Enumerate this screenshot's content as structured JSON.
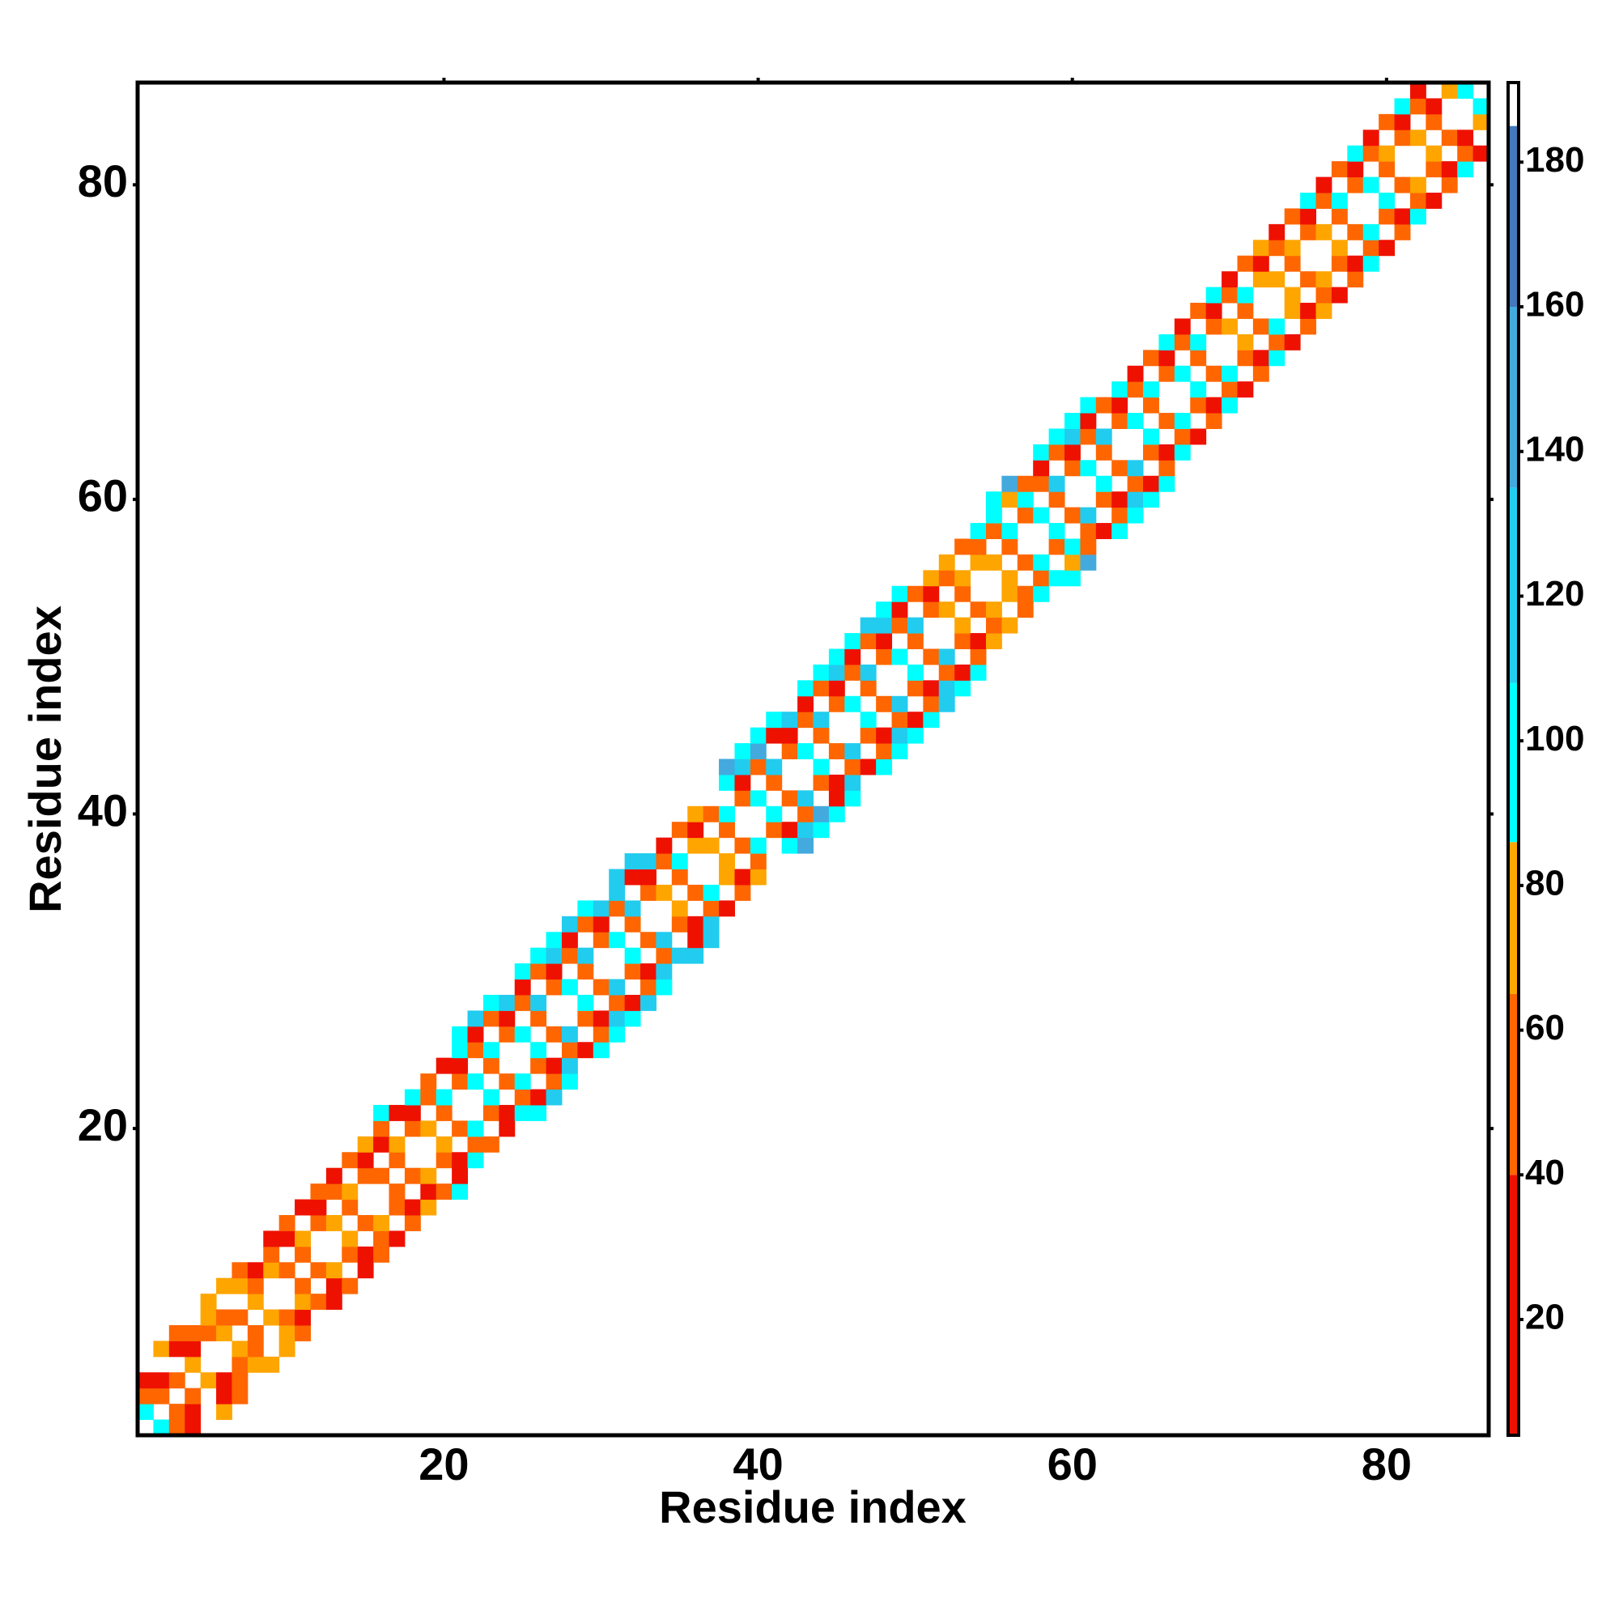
{
  "chart_data": {
    "type": "heatmap",
    "x_label": "Residue index",
    "y_label": "Residue index",
    "xlim": [
      0.5,
      86.5
    ],
    "ylim": [
      0.5,
      86.5
    ],
    "xticks": [
      20,
      40,
      60,
      80
    ],
    "yticks": [
      20,
      40,
      60,
      80
    ],
    "symmetric": true,
    "z_upper": [
      [
        95,
        48,
        20,
        null,
        null
      ],
      [
        50,
        22,
        null,
        72,
        null
      ],
      [
        48,
        null,
        25,
        55,
        null
      ],
      [
        72,
        20,
        50,
        null,
        null
      ],
      [
        null,
        55,
        75,
        70,
        null
      ],
      [
        70,
        50,
        null,
        78,
        null
      ],
      [
        50,
        null,
        72,
        48,
        null
      ],
      [
        75,
        48,
        22,
        null,
        null
      ],
      [
        null,
        70,
        50,
        28,
        null
      ],
      [
        52,
        null,
        20,
        55,
        null
      ],
      [
        48,
        72,
        null,
        30,
        null
      ],
      [
        null,
        50,
        25,
        58,
        null
      ],
      [
        70,
        null,
        48,
        22,
        null
      ],
      [
        50,
        75,
        null,
        45,
        null
      ],
      [
        null,
        48,
        20,
        72,
        null
      ],
      [
        55,
        null,
        30,
        50,
        95
      ],
      [
        48,
        72,
        null,
        25,
        null
      ],
      [
        null,
        50,
        22,
        95,
        null
      ],
      [
        75,
        null,
        48,
        52,
        null
      ],
      [
        50,
        96,
        null,
        30,
        null
      ],
      [
        null,
        48,
        20,
        100,
        95
      ],
      [
        95,
        null,
        52,
        25,
        118
      ],
      [
        48,
        98,
        null,
        50,
        95
      ],
      [
        null,
        50,
        22,
        120,
        null
      ],
      [
        96,
        null,
        55,
        30,
        98
      ],
      [
        50,
        118,
        null,
        48,
        95
      ],
      [
        null,
        52,
        25,
        122,
        97
      ],
      [
        97,
        null,
        48,
        30,
        118
      ],
      [
        50,
        120,
        null,
        55,
        95
      ],
      [
        null,
        48,
        22,
        125,
        null
      ],
      [
        95,
        null,
        52,
        130,
        120
      ],
      [
        48,
        118,
        null,
        25,
        122
      ],
      [
        null,
        50,
        30,
        120,
        null
      ],
      [
        72,
        null,
        48,
        22,
        null
      ],
      [
        48,
        95,
        null,
        50,
        null
      ],
      [
        null,
        72,
        25,
        75,
        null
      ],
      [
        75,
        null,
        48,
        null,
        null
      ],
      [
        50,
        96,
        null,
        95,
        140
      ],
      [
        null,
        48,
        22,
        120,
        95
      ],
      [
        97,
        null,
        50,
        145,
        96
      ],
      [
        50,
        118,
        null,
        25,
        95
      ],
      [
        null,
        52,
        20,
        120,
        null
      ],
      [
        95,
        null,
        48,
        30,
        97
      ],
      [
        48,
        120,
        null,
        52,
        95
      ],
      [
        null,
        50,
        25,
        118,
        96
      ],
      [
        96,
        null,
        48,
        22,
        95
      ],
      [
        50,
        118,
        null,
        50,
        120
      ],
      [
        null,
        48,
        25,
        118,
        95
      ],
      [
        95,
        null,
        52,
        20,
        97
      ],
      [
        48,
        120,
        null,
        50,
        null
      ],
      [
        null,
        50,
        28,
        72,
        null
      ],
      [
        72,
        null,
        48,
        75,
        null
      ],
      [
        50,
        75,
        null,
        48,
        null
      ],
      [
        null,
        72,
        50,
        95,
        null
      ],
      [
        75,
        null,
        48,
        96,
        95
      ],
      [
        50,
        98,
        null,
        72,
        145
      ],
      [
        null,
        48,
        95,
        55,
        null
      ],
      [
        96,
        null,
        50,
        22,
        95
      ],
      [
        48,
        118,
        null,
        52,
        96
      ],
      [
        null,
        50,
        25,
        120,
        97
      ],
      [
        96,
        null,
        48,
        22,
        95
      ],
      [
        50,
        118,
        null,
        50,
        null
      ],
      [
        null,
        48,
        25,
        96,
        null
      ],
      [
        95,
        null,
        52,
        30,
        null
      ],
      [
        48,
        96,
        null,
        50,
        null
      ],
      [
        null,
        50,
        22,
        98,
        null
      ],
      [
        95,
        null,
        48,
        25,
        null
      ],
      [
        50,
        97,
        null,
        52,
        null
      ],
      [
        null,
        48,
        22,
        95,
        null
      ],
      [
        75,
        null,
        50,
        28,
        null
      ],
      [
        48,
        96,
        null,
        52,
        null
      ],
      [
        null,
        72,
        25,
        75,
        null
      ],
      [
        75,
        null,
        48,
        22,
        null
      ],
      [
        50,
        72,
        null,
        55,
        null
      ],
      [
        null,
        48,
        22,
        95,
        null
      ],
      [
        72,
        null,
        50,
        25,
        null
      ],
      [
        48,
        95,
        null,
        50,
        null
      ],
      [
        null,
        50,
        22,
        96,
        null
      ],
      [
        95,
        null,
        48,
        28,
        null
      ],
      [
        50,
        72,
        null,
        52,
        null
      ],
      [
        null,
        48,
        22,
        95,
        null
      ],
      [
        72,
        null,
        50,
        25
      ],
      [
        48,
        20,
        null
      ],
      [
        null,
        75
      ],
      [
        95
      ]
    ],
    "colormap": [
      {
        "value": 4,
        "color": "#ee1100"
      },
      {
        "value": 40,
        "color": "#ff6600"
      },
      {
        "value": 65,
        "color": "#ffa500"
      },
      {
        "value": 86,
        "color": "#00ffff"
      },
      {
        "value": 108,
        "color": "#22ccee"
      },
      {
        "value": 135,
        "color": "#44aadd"
      },
      {
        "value": 160,
        "color": "#4477bb"
      },
      {
        "value": 185,
        "color": "#ffffff"
      }
    ],
    "clim": [
      4,
      191
    ],
    "cticks": [
      20,
      40,
      60,
      80,
      100,
      120,
      140,
      160,
      180
    ]
  }
}
